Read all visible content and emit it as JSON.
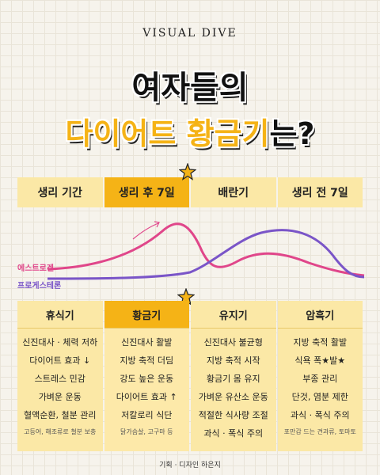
{
  "brand": "VISUAL DIVE",
  "title": {
    "line1": "여자들의",
    "line2_highlight": "다이어트 황금기",
    "line2_tail": "는?"
  },
  "phases": [
    "생리 기간",
    "생리 후 7일",
    "배란기",
    "생리 전 7일"
  ],
  "legend": {
    "estrogen": "에스트로겐",
    "progesterone": "프로게스테론"
  },
  "colors": {
    "accent": "#f5b316",
    "card": "#fbe8a6",
    "estrogen": "#e0468a",
    "progesterone": "#7a55c8"
  },
  "cards": [
    {
      "title": "휴식기",
      "items": [
        "신진대사 · 체력 저하",
        "다이어트 효과 ↓",
        "스트레스 민감",
        "가벼운 운동",
        "혈액순환, 철분 관리"
      ],
      "note": "고등어, 해조류로 철분 보충"
    },
    {
      "title": "황금기",
      "items": [
        "신진대사 활발",
        "지방 축적 더딤",
        "강도 높은 운동",
        "다이어트 효과 ↑",
        "저칼로리 식단"
      ],
      "note": "닭가슴살, 고구마 등"
    },
    {
      "title": "유지기",
      "items": [
        "신진대사 불균형",
        "지방 축적 시작",
        "황금기 몸 유지",
        "가벼운 유산소 운동",
        "적절한 식사량 조절",
        "과식 · 폭식 주의"
      ],
      "note": ""
    },
    {
      "title": "암흑기",
      "items": [
        "지방 축적 활발",
        "식욕 폭★발★",
        "부종 관리",
        "단것, 염분 제한",
        "과식 · 폭식 주의"
      ],
      "note": "포만감 드는 견과류, 토마토"
    }
  ],
  "credit": "기획 · 디자인 하은지"
}
